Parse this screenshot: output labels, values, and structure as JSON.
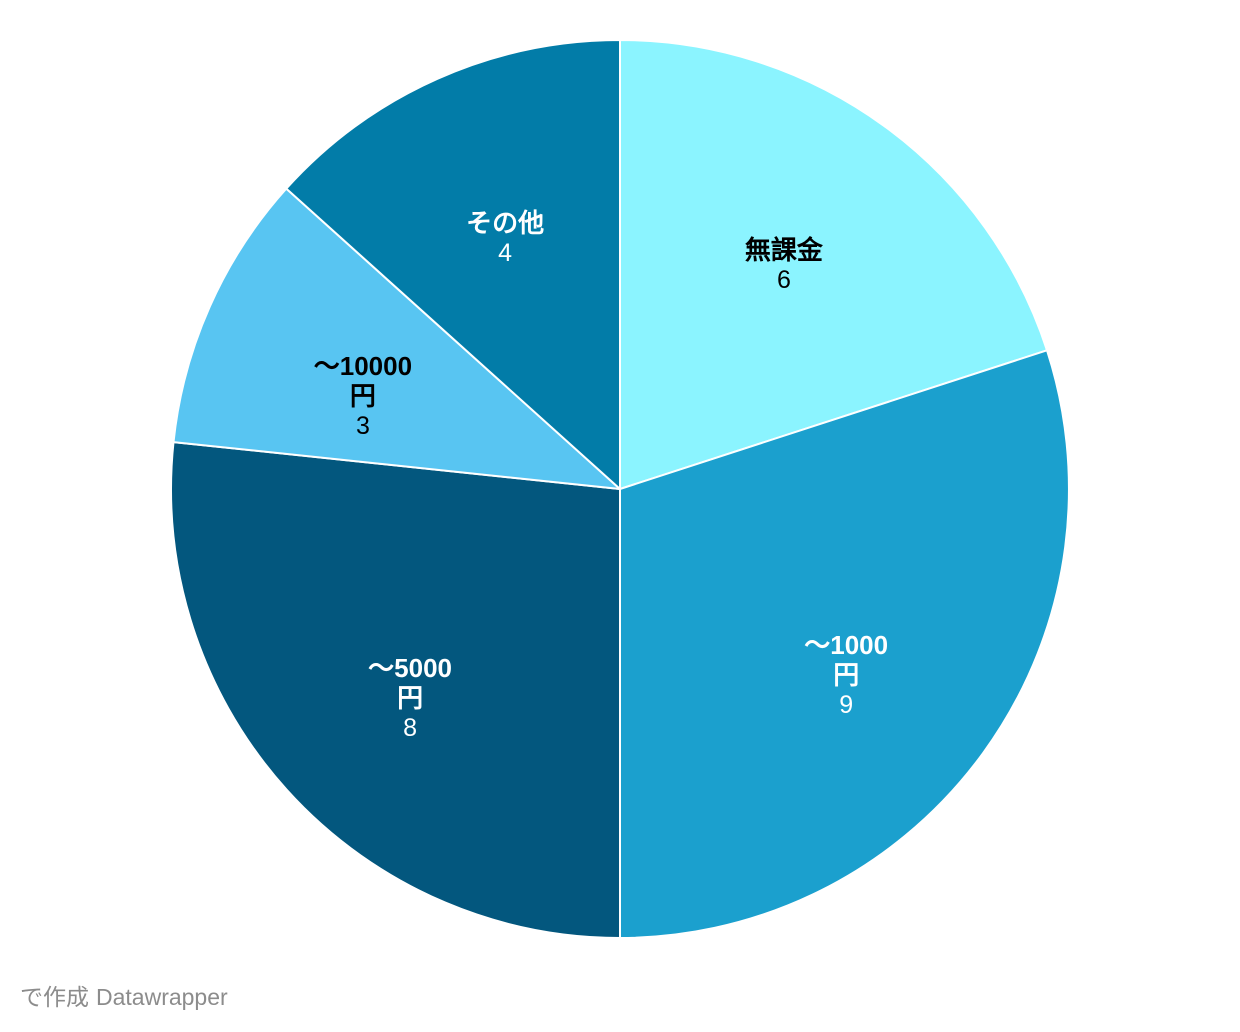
{
  "chart_data": {
    "type": "pie",
    "title": "",
    "direction": "clockwise",
    "start_angle_deg": 0,
    "legend_position": "none",
    "background": "#FFFFFF",
    "separator_color": "#FFFFFF",
    "slices": [
      {
        "label": "無課金",
        "label_lines": [
          "無課金"
        ],
        "value": 6,
        "color": "#8BF4FF",
        "text_color": "#000000"
      },
      {
        "label": "～1000円",
        "label_lines": [
          "～1000",
          "円"
        ],
        "value": 9,
        "color": "#1BA0CE",
        "text_color": "#FFFFFF"
      },
      {
        "label": "～5000円",
        "label_lines": [
          "～5000",
          "円"
        ],
        "value": 8,
        "color": "#03577E",
        "text_color": "#FFFFFF"
      },
      {
        "label": "～10000円",
        "label_lines": [
          "～10000",
          "円"
        ],
        "value": 3,
        "color": "#58C5F2",
        "text_color": "#000000"
      },
      {
        "label": "その他",
        "label_lines": [
          "その他"
        ],
        "value": 4,
        "color": "#027CA8",
        "text_color": "#FFFFFF"
      }
    ]
  },
  "footer": {
    "prefix": "で作成",
    "brand": "Datawrapper",
    "text_color": "#8C8C8C"
  }
}
